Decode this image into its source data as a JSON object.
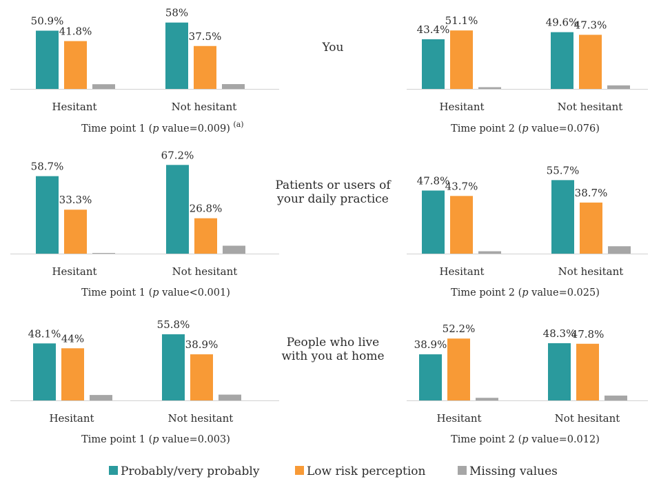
{
  "colors": {
    "probably": "#2a9a9d",
    "low_risk": "#f89a36",
    "missing": "#a6a6a6",
    "axis": "#d0d0d0"
  },
  "legend": [
    {
      "label": "Probably/very probably",
      "color_key": "probably"
    },
    {
      "label": "Low risk perception",
      "color_key": "low_risk"
    },
    {
      "label": "Missing values",
      "color_key": "missing"
    }
  ],
  "row_titles": [
    [
      "You"
    ],
    [
      "Patients or users of",
      "your daily practice"
    ],
    [
      "People who live",
      "with you at home"
    ]
  ],
  "footnote_marker": "(a)",
  "chart_data": [
    {
      "type": "bar",
      "row": 0,
      "col": 0,
      "caption": {
        "pre": "Time point 1 (",
        "p": "p",
        "post": " value=0.009)"
      },
      "categories": [
        "Hesitant",
        "Not hesitant"
      ],
      "series": [
        {
          "name": "Probably/very probably",
          "values": [
            50.9,
            58
          ],
          "labels": [
            "50.9%",
            "58%"
          ]
        },
        {
          "name": "Low risk perception",
          "values": [
            41.8,
            37.5
          ],
          "labels": [
            "41.8%",
            "37.5%"
          ]
        },
        {
          "name": "Missing values",
          "values": [
            4.1,
            4.2
          ]
        }
      ],
      "ylim": [
        0,
        60
      ]
    },
    {
      "type": "bar",
      "row": 0,
      "col": 1,
      "caption": {
        "pre": "Time point 2 (",
        "p": "p",
        "post": " value=0.076)"
      },
      "categories": [
        "Hesitant",
        "Not hesitant"
      ],
      "series": [
        {
          "name": "Probably/very probably",
          "values": [
            43.4,
            49.6
          ],
          "labels": [
            "43.4%",
            "49.6%"
          ]
        },
        {
          "name": "Low risk perception",
          "values": [
            51.1,
            47.3
          ],
          "labels": [
            "51.1%",
            "47.3%"
          ]
        },
        {
          "name": "Missing values",
          "values": [
            1.5,
            3.1
          ]
        }
      ],
      "ylim": [
        0,
        60
      ]
    },
    {
      "type": "bar",
      "row": 1,
      "col": 0,
      "caption": {
        "pre": "Time point 1 (",
        "p": "p",
        "post": " value<0.001)"
      },
      "categories": [
        "Hesitant",
        "Not hesitant"
      ],
      "series": [
        {
          "name": "Probably/very probably",
          "values": [
            58.7,
            67.2
          ],
          "labels": [
            "58.7%",
            "67.2%"
          ]
        },
        {
          "name": "Low risk perception",
          "values": [
            33.3,
            26.8
          ],
          "labels": [
            "33.3%",
            "26.8%"
          ]
        },
        {
          "name": "Missing values",
          "values": [
            0.5,
            6
          ]
        }
      ],
      "ylim": [
        0,
        70
      ]
    },
    {
      "type": "bar",
      "row": 1,
      "col": 1,
      "caption": {
        "pre": "Time point 2 (",
        "p": "p",
        "post": " value=0.025)"
      },
      "categories": [
        "Hesitant",
        "Not hesitant"
      ],
      "series": [
        {
          "name": "Probably/very probably",
          "values": [
            47.8,
            55.7
          ],
          "labels": [
            "47.8%",
            "55.7%"
          ]
        },
        {
          "name": "Low risk perception",
          "values": [
            43.7,
            38.7
          ],
          "labels": [
            "43.7%",
            "38.7%"
          ]
        },
        {
          "name": "Missing values",
          "values": [
            1.8,
            5.6
          ]
        }
      ],
      "ylim": [
        0,
        70
      ]
    },
    {
      "type": "bar",
      "row": 2,
      "col": 0,
      "caption": {
        "pre": "Time point 1 (",
        "p": "p",
        "post": " value=0.003)"
      },
      "categories": [
        "Hesitant",
        "Not hesitant"
      ],
      "series": [
        {
          "name": "Probably/very probably",
          "values": [
            48.1,
            55.8
          ],
          "labels": [
            "48.1%",
            "55.8%"
          ]
        },
        {
          "name": "Low risk perception",
          "values": [
            44,
            38.9
          ],
          "labels": [
            "44%",
            "38.9%"
          ]
        },
        {
          "name": "Missing values",
          "values": [
            4.6,
            4.9
          ]
        }
      ],
      "ylim": [
        0,
        60
      ]
    },
    {
      "type": "bar",
      "row": 2,
      "col": 1,
      "caption": {
        "pre": "Time point 2 (",
        "p": "p",
        "post": " value=0.012)"
      },
      "categories": [
        "Hesitant",
        "Not hesitant"
      ],
      "series": [
        {
          "name": "Probably/very probably",
          "values": [
            38.9,
            48.3
          ],
          "labels": [
            "38.9%",
            "48.3%"
          ]
        },
        {
          "name": "Low risk perception",
          "values": [
            52.2,
            47.8
          ],
          "labels": [
            "52.2%",
            "47.8%"
          ]
        },
        {
          "name": "Missing values",
          "values": [
            2.2,
            4.1
          ]
        }
      ],
      "ylim": [
        0,
        60
      ]
    }
  ]
}
